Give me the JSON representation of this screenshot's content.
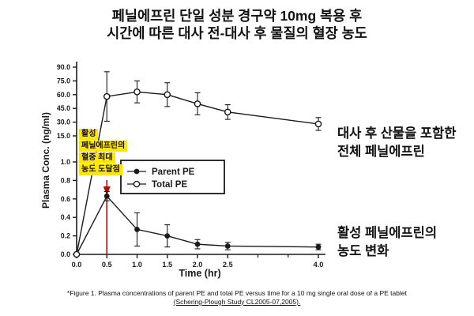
{
  "title": {
    "line1": "페닐에프린 단일 성분 경구약 10mg 복용 후",
    "line2": "시간에 따른 대사 전-대사 후 물질의 혈장 농도"
  },
  "chart_data": {
    "type": "line",
    "xlabel": "Time (hr)",
    "ylabel": "Plasma Conc. (ng/ml)",
    "x_max": 4.0,
    "x_ticks": [
      0.0,
      0.5,
      1.0,
      1.5,
      2.0,
      2.5,
      4.0
    ],
    "x_minor_ticks": [
      3.0,
      3.5
    ],
    "y_axis_break": {
      "lower_ticks": [
        0.0,
        0.2,
        0.4,
        0.6,
        0.8,
        1.0
      ],
      "upper_ticks": [
        15.0,
        30.0,
        45.0,
        60.0,
        75.0,
        90.0
      ]
    },
    "series": [
      {
        "name": "Parent PE",
        "marker": "filled-circle",
        "x": [
          0.0,
          0.5,
          1.0,
          1.5,
          2.0,
          2.5,
          4.0
        ],
        "y": [
          0.0,
          0.63,
          0.27,
          0.2,
          0.11,
          0.09,
          0.08
        ],
        "err": [
          0,
          0.05,
          0.18,
          0.12,
          0.05,
          0.04,
          0.03
        ]
      },
      {
        "name": "Total PE",
        "marker": "open-circle",
        "x": [
          0.0,
          0.5,
          1.0,
          1.5,
          2.0,
          2.5,
          4.0
        ],
        "y": [
          0.0,
          58,
          63,
          60,
          50,
          41,
          28
        ],
        "err": [
          0,
          27,
          12,
          13,
          12,
          8,
          7
        ]
      }
    ],
    "legend_position": "inside-left"
  },
  "annotations": {
    "peak_label_lines": [
      "활성",
      "페닐에프린의",
      "혈중 최대",
      "농도 도달점"
    ],
    "peak_x": 0.5,
    "total_pe_label_line1": "대사 후 산물을 포함한",
    "total_pe_label_line2": "전체 페닐에프린",
    "parent_pe_label_line1": "활성 페닐에프린의",
    "parent_pe_label_line2": "농도 변화",
    "highlight_color": "#ffe600",
    "arrow_color": "#c00000"
  },
  "footnote": {
    "line1": "*Figure 1. Plasma concentrations of parent PE and total PE versus time for a 10 mg single oral dose of a PE tablet",
    "line2": "(Schering-Plough Study CL2005-07,2005)."
  }
}
